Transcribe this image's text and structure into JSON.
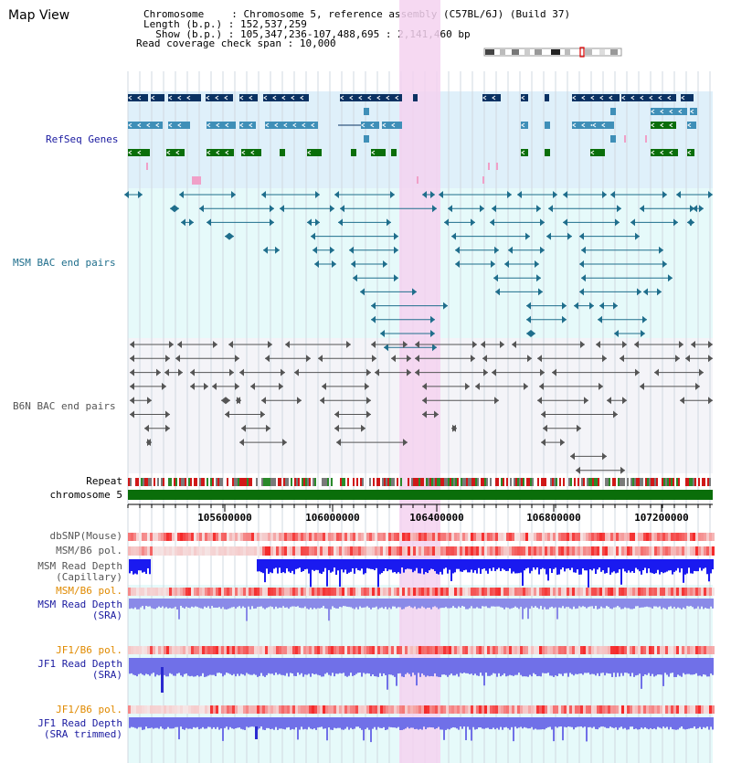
{
  "page": {
    "title": "Map View"
  },
  "header": {
    "chromosome_label": "Chromosome",
    "chromosome_value": "Chromosome 5, reference assembly (C57BL/6J) (Build 37)",
    "length_label": "Length (b.p.)",
    "length_value": "152,537,259",
    "show_label": "Show (b.p.)",
    "show_value": "105,347,236-107,488,695 : 2,141,460 bp",
    "span_label": "Read coverage check span",
    "span_value": "10,000"
  },
  "tracks": {
    "refseq": "RefSeq Genes",
    "msm_bac": "MSM BAC end pairs",
    "b6n_bac": "B6N BAC end pairs",
    "repeat": "Repeat",
    "chromosome": "chromosome 5",
    "dbsnp": "dbSNP(Mouse)",
    "msm_b6_pol": "MSM/B6 pol.",
    "msm_depth_cap_1": "MSM Read Depth",
    "msm_depth_cap_2": "(Capillary)",
    "msm_b6_pol_sra": "MSM/B6 pol.",
    "msm_depth_sra_1": "MSM Read Depth",
    "msm_depth_sra_2": "(SRA)",
    "jf1_b6_pol": "JF1/B6 pol.",
    "jf1_depth_1": "JF1 Read Depth",
    "jf1_depth_2": "(SRA)",
    "jf1_b6_pol_trim": "JF1/B6 pol.",
    "jf1_trim_1": "JF1 Read Depth",
    "jf1_trim_2": "(SRA trimmed)"
  },
  "axis": {
    "ticks": [
      "105600000",
      "106000000",
      "106400000",
      "106800000",
      "107200000"
    ]
  },
  "colors": {
    "refseq_bg": "#dff0fa",
    "msm_bg": "#e6fafa",
    "b6n_bg": "#f4f4f8",
    "highlight": "#f5d2f0",
    "gene_dark": "#0a3263",
    "gene_mid": "#3f8fb8",
    "gene_green": "#0a6e0a",
    "msm_line": "#1f6e8c",
    "b6n_line": "#555555",
    "chrom_bar": "#0a6e0a",
    "label_blue": "#1a1aa0",
    "label_orange": "#e08a00",
    "label_teal": "#1f6e8c",
    "label_gray": "#555555"
  }
}
